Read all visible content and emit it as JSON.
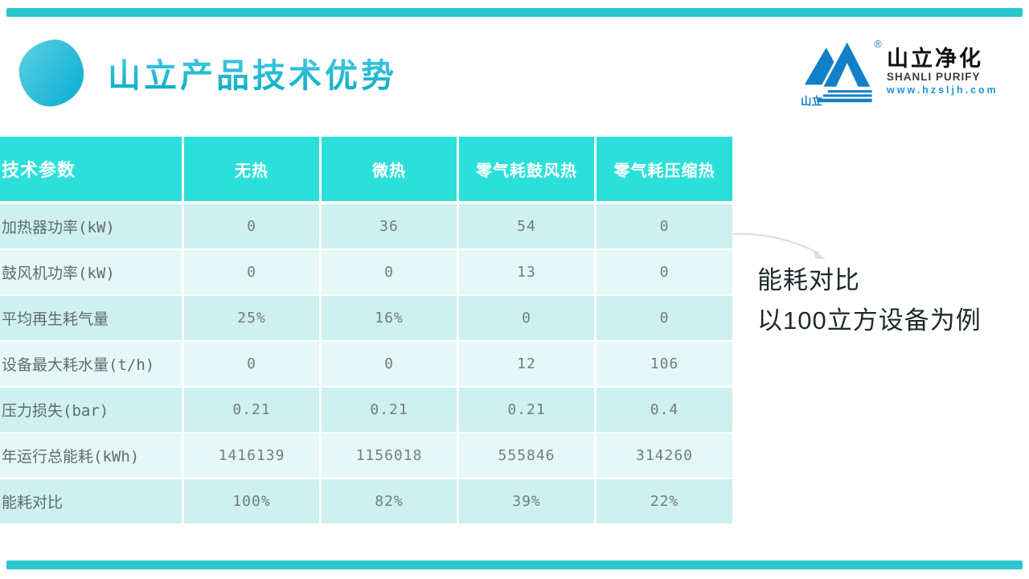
{
  "page": {
    "title": "山立产品技术优势"
  },
  "brand": {
    "mark_small_text": "山立",
    "registered_mark": "®",
    "name_cn": "山立净化",
    "name_en": "SHANLI PURIFY",
    "website": "www.hzsljh.com"
  },
  "annotation": {
    "line1": "能耗对比",
    "line2": "以100立方设备为例"
  },
  "table": {
    "columns": [
      "技术参数",
      "无热",
      "微热",
      "零气耗鼓风热",
      "零气耗压缩热"
    ],
    "rows": [
      {
        "label": "加热器功率(kW)",
        "values": [
          "0",
          "36",
          "54",
          "0"
        ]
      },
      {
        "label": "鼓风机功率(kW)",
        "values": [
          "0",
          "0",
          "13",
          "0"
        ]
      },
      {
        "label": "平均再生耗气量",
        "values": [
          "25%",
          "16%",
          "0",
          "0"
        ]
      },
      {
        "label": "设备最大耗水量(t/h)",
        "values": [
          "0",
          "0",
          "12",
          "106"
        ]
      },
      {
        "label": "压力损失(bar)",
        "values": [
          "0.21",
          "0.21",
          "0.21",
          "0.4"
        ]
      },
      {
        "label": "年运行总能耗(kWh)",
        "values": [
          "1416139",
          "1156018",
          "555846",
          "314260"
        ]
      },
      {
        "label": "能耗对比",
        "values": [
          "100%",
          "82%",
          "39%",
          "22%"
        ]
      }
    ]
  },
  "colors": {
    "bar-teal": "#2bc6ce",
    "header-teal": "#2be0da",
    "row-odd": "#cef0ee",
    "row-even": "#e5f8f7",
    "blob-light": "#56cde1",
    "blob-dark": "#17b3d8",
    "logo-blue": "#1180c8",
    "url-blue": "#2196dc",
    "label-gray": "#5f6d6d",
    "value-gray": "#6f7f7f",
    "annotation-dark": "#1c2a2a",
    "swoosh-gray": "#d9dedd"
  }
}
